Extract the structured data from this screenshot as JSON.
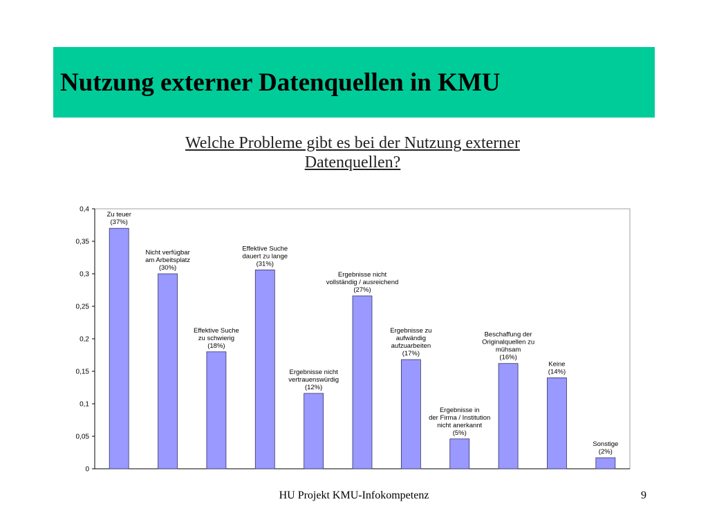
{
  "slide": {
    "title": "Nutzung externer Datenquellen in KMU",
    "question_line1": "Welche Probleme gibt es bei der Nutzung externer",
    "question_line2": "Datenquellen?",
    "footer": "HU Projekt KMU-Infokompetenz",
    "page_number": "9"
  },
  "colors": {
    "title_bar": "#00cc99",
    "bar_fill": "#9999ff",
    "bar_stroke": "#333366"
  },
  "chart_data": {
    "type": "bar",
    "title": "",
    "xlabel": "",
    "ylabel": "",
    "ylim": [
      0,
      0.4
    ],
    "yticks": [
      "0",
      "0,05",
      "0,1",
      "0,15",
      "0,2",
      "0,25",
      "0,3",
      "0,35",
      "0,4"
    ],
    "grid": false,
    "categories": [
      [
        "Zu teuer",
        "(37%)"
      ],
      [
        "Nicht verfügbar",
        "am Arbeitsplatz",
        "(30%)"
      ],
      [
        "Effektive Suche",
        "zu schwierig",
        "(18%)"
      ],
      [
        "Effektive Suche",
        "dauert zu lange",
        "(31%)"
      ],
      [
        "Ergebnisse nicht",
        "vertrauenswürdig",
        "(12%)"
      ],
      [
        "Ergebnisse nicht",
        "vollständig / ausreichend",
        "(27%)"
      ],
      [
        "Ergebnisse zu",
        "aufwändig",
        "aufzuarbeiten",
        "(17%)"
      ],
      [
        "Ergebnisse in",
        "der Firma / Institution",
        "nicht anerkannt",
        "(5%)"
      ],
      [
        "Beschaffung der",
        "Originalquellen zu",
        "mühsam",
        "(16%)"
      ],
      [
        "Keine",
        "(14%)"
      ],
      [
        "Sonstige",
        "(2%)"
      ]
    ],
    "values": [
      0.37,
      0.3,
      0.18,
      0.306,
      0.116,
      0.266,
      0.168,
      0.046,
      0.162,
      0.14,
      0.017
    ]
  }
}
